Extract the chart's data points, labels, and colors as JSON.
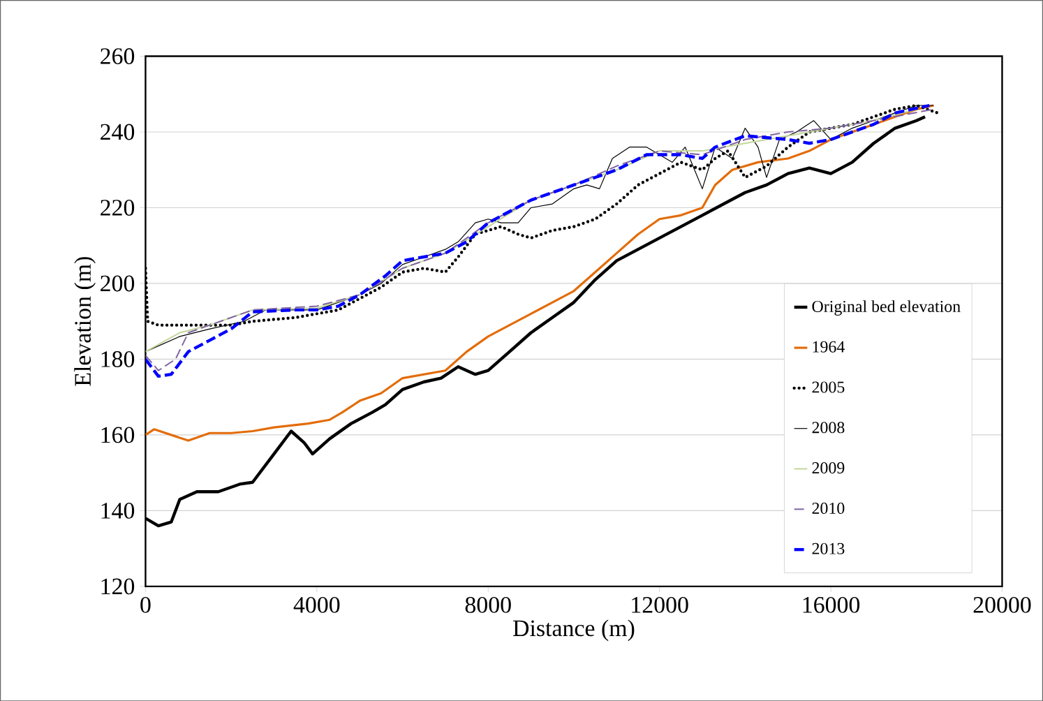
{
  "chart_data": {
    "type": "line",
    "xlabel": "Distance (m)",
    "ylabel": "Elevation (m)",
    "xlim": [
      0,
      20000
    ],
    "ylim": [
      120,
      260
    ],
    "xticks": [
      0,
      4000,
      8000,
      12000,
      16000,
      20000
    ],
    "yticks": [
      120,
      140,
      160,
      180,
      200,
      220,
      240,
      260
    ],
    "grid": "y",
    "legend": "bottom right",
    "series": [
      {
        "name": "Original bed elevation",
        "color": "#000000",
        "line_style": "solid",
        "x": [
          0,
          300,
          600,
          800,
          1200,
          1700,
          2200,
          2500,
          3000,
          3400,
          3700,
          3900,
          4300,
          4800,
          5300,
          5600,
          6000,
          6500,
          6900,
          7300,
          7700,
          8000,
          8500,
          9000,
          9500,
          10000,
          10500,
          11000,
          11500,
          12000,
          12500,
          13000,
          13500,
          14000,
          14500,
          15000,
          15500,
          16000,
          16500,
          17000,
          17500,
          18000,
          18200
        ],
        "values": [
          138,
          136,
          137,
          143,
          145,
          145,
          147,
          147.5,
          155,
          161,
          158,
          155,
          159,
          163,
          166,
          168,
          172,
          174,
          175,
          178,
          176,
          177,
          182,
          187,
          191,
          195,
          201,
          206,
          209,
          212,
          215,
          218,
          221,
          224,
          226,
          229,
          230.5,
          229,
          232,
          237,
          241,
          243,
          244
        ]
      },
      {
        "name": "1964",
        "color": "#e36c0a",
        "line_style": "solid",
        "x": [
          0,
          200,
          600,
          1000,
          1500,
          2000,
          2500,
          3000,
          3800,
          4300,
          4600,
          5000,
          5500,
          6000,
          6500,
          7000,
          7500,
          8000,
          8500,
          9000,
          9500,
          10000,
          10500,
          11000,
          11500,
          12000,
          12500,
          13000,
          13300,
          13700,
          14300,
          15000,
          15500,
          16000,
          16500,
          17000,
          17500,
          18000,
          18400
        ],
        "values": [
          160,
          161.5,
          160,
          158.5,
          160.5,
          160.5,
          161,
          162,
          163,
          164,
          166,
          169,
          171,
          175,
          176,
          177,
          182,
          186,
          189,
          192,
          195,
          198,
          203,
          208,
          213,
          217,
          218,
          220,
          226,
          230,
          232,
          233,
          235,
          238,
          240,
          242,
          244,
          246,
          247
        ]
      },
      {
        "name": "2005",
        "color": "#000000",
        "line_style": "dotted",
        "x": [
          0,
          50,
          300,
          1000,
          2000,
          2500,
          3000,
          3500,
          4000,
          4500,
          5000,
          5500,
          6000,
          6500,
          7000,
          7300,
          7700,
          8000,
          8300,
          8700,
          9000,
          9500,
          10000,
          10500,
          11000,
          11500,
          12000,
          12500,
          13000,
          13300,
          13600,
          14000,
          14500,
          15000,
          15500,
          16000,
          16500,
          17000,
          17500,
          18000,
          18500
        ],
        "values": [
          204,
          190,
          189,
          189,
          189,
          190,
          190.5,
          191,
          192,
          193,
          196,
          199,
          203,
          204,
          203,
          207,
          213,
          214,
          215,
          213,
          212,
          214,
          215,
          217,
          221,
          226,
          229,
          232,
          230,
          233,
          235,
          228,
          231,
          236,
          240,
          241,
          242,
          244,
          246,
          247,
          245
        ]
      },
      {
        "name": "2008",
        "color": "#000000",
        "line_style": "solid",
        "x": [
          0,
          800,
          1500,
          2300,
          2800,
          3500,
          4000,
          4500,
          5000,
          5500,
          6000,
          6500,
          7000,
          7300,
          7700,
          8000,
          8300,
          8700,
          9000,
          9500,
          10000,
          10300,
          10600,
          10900,
          11300,
          11700,
          12000,
          12300,
          12600,
          13000,
          13300,
          13700,
          14000,
          14300,
          14500,
          14800,
          15200,
          15600,
          16000,
          16500,
          17000,
          17500,
          18000,
          18400
        ],
        "values": [
          182,
          186,
          188,
          190,
          193,
          193,
          193,
          195,
          197,
          200,
          205,
          207,
          209,
          211,
          216,
          217,
          216,
          216,
          220,
          221,
          225,
          226,
          225,
          233,
          236,
          236,
          234,
          232,
          236,
          225,
          236,
          233,
          241,
          236,
          228,
          238,
          240,
          243,
          238,
          241,
          243,
          245,
          247,
          247
        ]
      },
      {
        "name": "2009",
        "color": "#c3d69b",
        "line_style": "solid",
        "x": [
          0,
          800,
          1500,
          2500,
          4000,
          5000,
          6000,
          7000,
          8000,
          9000,
          10000,
          11000,
          12000,
          13000,
          14000,
          15000,
          16000,
          17000,
          18000
        ],
        "values": [
          182,
          187,
          189,
          193,
          193.5,
          197,
          204,
          208,
          215,
          222,
          226,
          230,
          235,
          235,
          237,
          239,
          241,
          243,
          246
        ]
      },
      {
        "name": "2010",
        "color": "#8064a2",
        "line_style": "dashed",
        "x": [
          0,
          300,
          700,
          1000,
          1500,
          2500,
          4000,
          5000,
          6000,
          7000,
          8000,
          9000,
          10000,
          11000,
          12000,
          13000,
          14000,
          15000,
          16000,
          17000,
          18400
        ],
        "values": [
          181,
          177,
          180,
          187,
          189,
          193,
          194,
          197,
          204,
          208,
          216,
          222,
          226,
          231,
          235,
          234,
          238,
          240,
          241,
          243,
          246
        ]
      },
      {
        "name": "2013",
        "color": "#0000ff",
        "line_style": "dashed",
        "x": [
          0,
          300,
          600,
          1000,
          1500,
          2000,
          2500,
          3500,
          4000,
          4500,
          5000,
          5600,
          6000,
          7000,
          7500,
          8000,
          9000,
          10000,
          11000,
          11700,
          12500,
          13000,
          13300,
          14000,
          15000,
          15500,
          16000,
          16500,
          17000,
          17500,
          18300
        ],
        "values": [
          180,
          175.5,
          176,
          182,
          185,
          188,
          192.5,
          193,
          193,
          194,
          197,
          202,
          206,
          208,
          211,
          216,
          222,
          226,
          230,
          234,
          234,
          233,
          236,
          239,
          238,
          237,
          238,
          240,
          242,
          245,
          247
        ]
      }
    ]
  }
}
